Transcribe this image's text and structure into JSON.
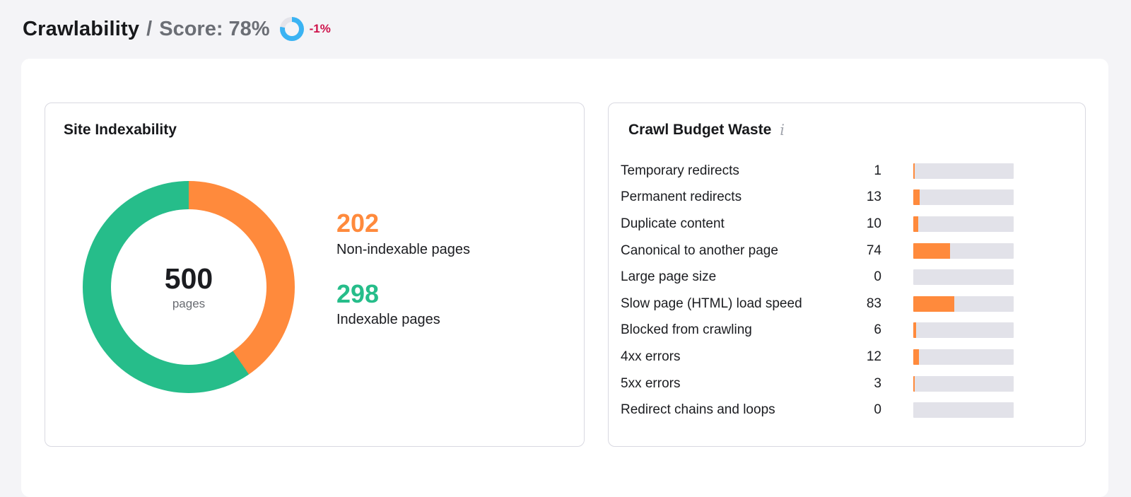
{
  "header": {
    "title": "Crawlability",
    "separator": "/",
    "score_label": "Score: 78%",
    "score_percent": 78,
    "delta": "-1%"
  },
  "site_indexability": {
    "title": "Site Indexability",
    "total_value": "500",
    "total_unit": "pages",
    "non_indexable": {
      "value": "202",
      "label": "Non-indexable pages"
    },
    "indexable": {
      "value": "298",
      "label": "Indexable pages"
    }
  },
  "crawl_budget_waste": {
    "title": "Crawl Budget Waste",
    "info_icon": "i",
    "bar_denominator": 202,
    "rows": [
      {
        "label": "Temporary redirects",
        "value": 1
      },
      {
        "label": "Permanent redirects",
        "value": 13
      },
      {
        "label": "Duplicate content",
        "value": 10
      },
      {
        "label": "Canonical to another page",
        "value": 74
      },
      {
        "label": "Large page size",
        "value": 0
      },
      {
        "label": "Slow page (HTML) load speed",
        "value": 83
      },
      {
        "label": "Blocked from crawling",
        "value": 6
      },
      {
        "label": "4xx errors",
        "value": 12
      },
      {
        "label": "5xx errors",
        "value": 3
      },
      {
        "label": "Redirect chains and loops",
        "value": 0
      }
    ]
  },
  "colors": {
    "orange": "#ff8a3c",
    "green": "#26bd8a",
    "blue": "#3ab3f3",
    "red": "#ce134b",
    "bar_track": "#e2e2e9",
    "donut_track": "#e4e4ea"
  },
  "chart_data": [
    {
      "type": "pie",
      "title": "Site Indexability",
      "labels": [
        "Non-indexable pages",
        "Indexable pages"
      ],
      "values": [
        202,
        298
      ],
      "colors": [
        "#ff8a3c",
        "#26bd8a"
      ],
      "center_label": "500 pages",
      "donut": true,
      "start_angle_deg": 0,
      "direction": "clockwise"
    },
    {
      "type": "bar",
      "title": "Crawl Budget Waste",
      "orientation": "horizontal",
      "categories": [
        "Temporary redirects",
        "Permanent redirects",
        "Duplicate content",
        "Canonical to another page",
        "Large page size",
        "Slow page (HTML) load speed",
        "Blocked from crawling",
        "4xx errors",
        "5xx errors",
        "Redirect chains and loops"
      ],
      "values": [
        1,
        13,
        10,
        74,
        0,
        83,
        6,
        12,
        3,
        0
      ],
      "xlim": [
        0,
        202
      ],
      "grid": false,
      "legend": false,
      "bar_color": "#ff8a3c"
    },
    {
      "type": "pie",
      "title": "Crawlability Score",
      "labels": [
        "Score",
        "Remainder"
      ],
      "values": [
        78,
        22
      ],
      "colors": [
        "#3ab3f3",
        "#e4e4ea"
      ],
      "donut": true,
      "annotation": "-1%"
    }
  ]
}
